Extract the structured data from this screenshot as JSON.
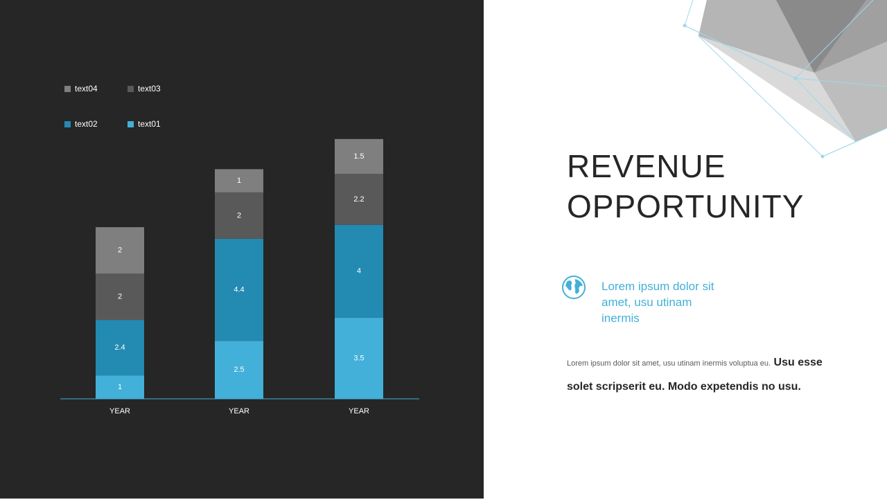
{
  "chart_data": {
    "type": "bar",
    "stacked": true,
    "categories": [
      "YEAR",
      "YEAR",
      "YEAR"
    ],
    "series": [
      {
        "name": "text01",
        "color": "#42b0d8",
        "values": [
          1,
          2.5,
          3.5
        ]
      },
      {
        "name": "text02",
        "color": "#238ab2",
        "values": [
          2.4,
          4.4,
          4
        ]
      },
      {
        "name": "text03",
        "color": "#595959",
        "values": [
          2,
          2,
          2.2
        ]
      },
      {
        "name": "text04",
        "color": "#7f7f7f",
        "values": [
          2,
          1,
          1.5
        ]
      }
    ]
  },
  "slide": {
    "title": "REVENUE OPPORTUNITY",
    "subtitle": "Lorem ipsum dolor sit amet, usu utinam inermis",
    "body_small": "Lorem  ipsum dolor sit amet, usu utinam inermis voluptua eu.",
    "body_bold": "Usu esse solet scripserit eu. Modo expetendis no usu."
  }
}
